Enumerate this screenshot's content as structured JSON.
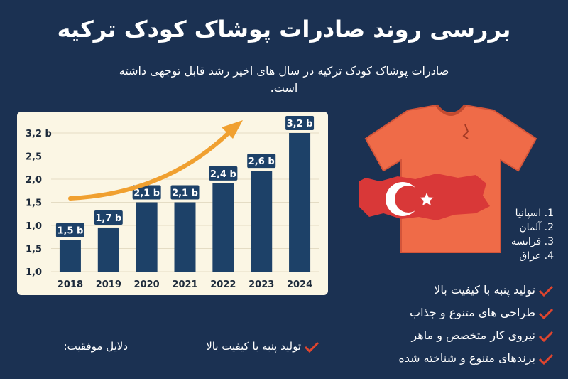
{
  "title": "بررسی روند صادرات پوشاک کودک ترکیه",
  "subtitle": "صادرات پوشاک کودک ترکیه در سال های اخیر رشد قابل توجهی داشته است.",
  "chart_data": {
    "type": "bar",
    "categories": [
      "2018",
      "2019",
      "2020",
      "2021",
      "2022",
      "2023",
      "2024"
    ],
    "values": [
      1.5,
      1.7,
      2.1,
      2.1,
      2.4,
      2.6,
      3.2
    ],
    "data_labels": [
      "1,5 b",
      "1,7 b",
      "2,1 b",
      "2,1 b",
      "2,4 b",
      "2,6 b",
      "3,2 b"
    ],
    "y_ticks": [
      "1,0",
      "1,5",
      "1,0",
      "1,5",
      "2,0",
      "2,5",
      "3,2 b"
    ],
    "ylim": [
      1.0,
      3.2
    ],
    "title": "",
    "xlabel": "",
    "ylabel": "",
    "bar_color": "#1d4168",
    "arrow_color": "#f0a030",
    "grid": true
  },
  "countries": [
    "1. اسپانیا",
    "2. آلمان",
    "3. فرانسه",
    "4. عراق"
  ],
  "reasons": [
    "تولید پنبه با کیفیت بالا",
    "طراحی های متنوع و جذاب",
    "نیروی کار متخصص و ماهر",
    "برندهای متنوع و شناخته شده"
  ],
  "success_label": "دلایل موفقیت:",
  "bottom_reason": "تولید پنبه با کیفیت بالا",
  "colors": {
    "background": "#1b3152",
    "shirt": "#ef6b48",
    "flag": "#d93838",
    "check": "#e0452e"
  }
}
